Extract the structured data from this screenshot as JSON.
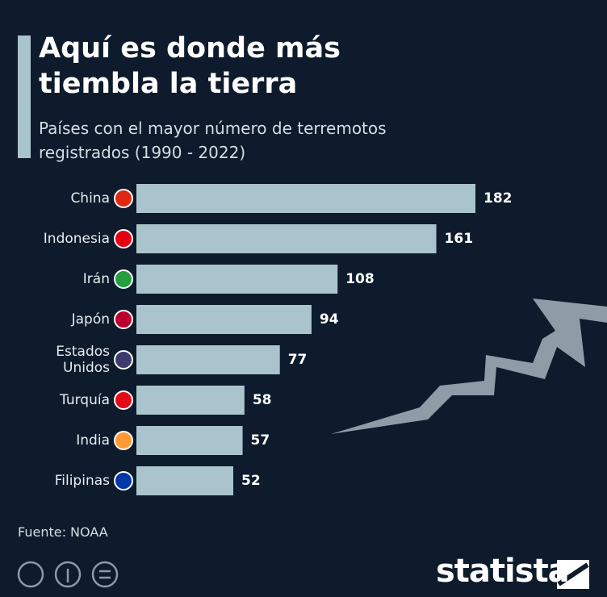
{
  "chart_data": {
    "type": "bar",
    "orientation": "horizontal",
    "title": "Aquí es donde más tiembla la tierra",
    "subtitle": "Países con el mayor número de terremotos registrados (1990 - 2022)",
    "categories": [
      "China",
      "Indonesia",
      "Irán",
      "Japón",
      "Estados Unidos",
      "Turquía",
      "India",
      "Filipinas"
    ],
    "values": [
      182,
      161,
      108,
      94,
      77,
      58,
      57,
      52
    ],
    "color": "#a9c4cc",
    "source": "Fuente: NOAA",
    "brand": "statista"
  }
}
